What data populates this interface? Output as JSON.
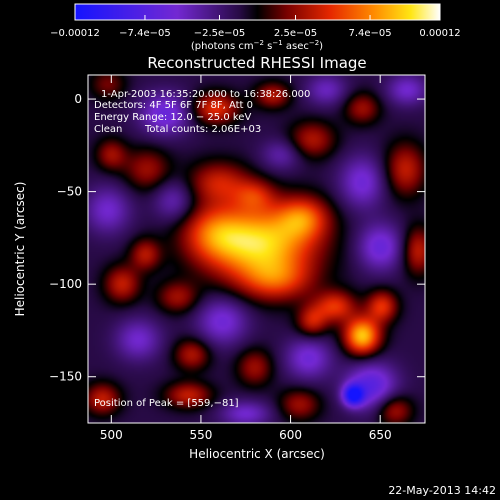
{
  "chart_data": {
    "type": "heatmap",
    "title": "Reconstructed RHESSI Image",
    "xlabel": "Heliocentric X (arcsec)",
    "ylabel": "Heliocentric Y (arcsec)",
    "xlim": [
      487,
      675
    ],
    "ylim": [
      -175,
      13
    ],
    "x_ticks": [
      {
        "value": 500,
        "label": "500"
      },
      {
        "value": 550,
        "label": "550"
      },
      {
        "value": 600,
        "label": "600"
      },
      {
        "value": 650,
        "label": "650"
      }
    ],
    "y_ticks": [
      {
        "value": 0,
        "label": "0"
      },
      {
        "value": -50,
        "label": "−50"
      },
      {
        "value": -100,
        "label": "−100"
      },
      {
        "value": -150,
        "label": "−150"
      }
    ],
    "colorbar": {
      "range": [
        -0.00012,
        0.00012
      ],
      "ticks": [
        {
          "value": -0.00012,
          "label": "−0.00012"
        },
        {
          "value": -7.4e-05,
          "label": "−7.4e−05"
        },
        {
          "value": -2.5e-05,
          "label": "−2.5e−05"
        },
        {
          "value": 2.5e-05,
          "label": "2.5e−05"
        },
        {
          "value": 7.4e-05,
          "label": "7.4e−05"
        },
        {
          "value": 0.00012,
          "label": "0.00012"
        }
      ],
      "unit_prefix": "(photons cm",
      "unit_sup1": "−2",
      "unit_mid": " s",
      "unit_sup2": "−1",
      "unit_mid2": " asec",
      "unit_sup3": "−2",
      "unit_suffix": ")"
    },
    "annotations": {
      "time_range": "1-Apr-2003 16:35:20.000 to 16:38:26.000",
      "detectors": "Detectors: 4F 5F 6F 7F 8F, Att 0",
      "energy": "Energy Range: 12.0 − 25.0 keV",
      "algorithm": "Clean",
      "counts": "Total counts: 2.06E+03",
      "peak": "Position of Peak = [559,−81]"
    },
    "peak": {
      "x": 559,
      "y": -81
    },
    "blobs": [
      {
        "x": 582,
        "y": -78,
        "sx": 22,
        "sy": 14,
        "a": 0.000112
      },
      {
        "x": 557,
        "y": -72,
        "sx": 12,
        "sy": 10,
        "a": 4.5e-05
      },
      {
        "x": 607,
        "y": -64,
        "sx": 10,
        "sy": 8,
        "a": 6e-05
      },
      {
        "x": 592,
        "y": -98,
        "sx": 14,
        "sy": 8,
        "a": 5e-05
      },
      {
        "x": 560,
        "y": -45,
        "sx": 12,
        "sy": 8,
        "a": 5e-05
      },
      {
        "x": 580,
        "y": -52,
        "sx": 8,
        "sy": 6,
        "a": 4e-05
      },
      {
        "x": 640,
        "y": -128,
        "sx": 7,
        "sy": 7,
        "a": 0.000105
      },
      {
        "x": 625,
        "y": -112,
        "sx": 8,
        "sy": 6,
        "a": 6e-05
      },
      {
        "x": 651,
        "y": -112,
        "sx": 6,
        "sy": 6,
        "a": 6e-05
      },
      {
        "x": 612,
        "y": -120,
        "sx": 6,
        "sy": 6,
        "a": 5e-05
      },
      {
        "x": 558,
        "y": -5,
        "sx": 9,
        "sy": 6,
        "a": 6e-05
      },
      {
        "x": 590,
        "y": 2,
        "sx": 7,
        "sy": 5,
        "a": 4.5e-05
      },
      {
        "x": 612,
        "y": -22,
        "sx": 9,
        "sy": 7,
        "a": 4.5e-05
      },
      {
        "x": 640,
        "y": -5,
        "sx": 7,
        "sy": 6,
        "a": 4e-05
      },
      {
        "x": 664,
        "y": -38,
        "sx": 8,
        "sy": 10,
        "a": 5e-05
      },
      {
        "x": 506,
        "y": -100,
        "sx": 7,
        "sy": 7,
        "a": 5e-05
      },
      {
        "x": 519,
        "y": -84,
        "sx": 6,
        "sy": 6,
        "a": 4.5e-05
      },
      {
        "x": 537,
        "y": -107,
        "sx": 8,
        "sy": 6,
        "a": 4e-05
      },
      {
        "x": 520,
        "y": -38,
        "sx": 9,
        "sy": 8,
        "a": 4e-05
      },
      {
        "x": 500,
        "y": -30,
        "sx": 6,
        "sy": 6,
        "a": 4e-05
      },
      {
        "x": 495,
        "y": -162,
        "sx": 7,
        "sy": 6,
        "a": 5e-05
      },
      {
        "x": 543,
        "y": -160,
        "sx": 9,
        "sy": 5,
        "a": 5e-05
      },
      {
        "x": 545,
        "y": -138,
        "sx": 7,
        "sy": 6,
        "a": 4.5e-05
      },
      {
        "x": 580,
        "y": -145,
        "sx": 7,
        "sy": 7,
        "a": 4e-05
      },
      {
        "x": 605,
        "y": -165,
        "sx": 8,
        "sy": 6,
        "a": 4e-05
      },
      {
        "x": 658,
        "y": -168,
        "sx": 7,
        "sy": 6,
        "a": 4.5e-05
      },
      {
        "x": 671,
        "y": -82,
        "sx": 6,
        "sy": 9,
        "a": 5e-05
      },
      {
        "x": 498,
        "y": 8,
        "sx": 7,
        "sy": 6,
        "a": 3e-05
      },
      {
        "x": 530,
        "y": -8,
        "sx": 10,
        "sy": 8,
        "a": -5e-05
      },
      {
        "x": 498,
        "y": -60,
        "sx": 9,
        "sy": 9,
        "a": -4e-05
      },
      {
        "x": 535,
        "y": -55,
        "sx": 8,
        "sy": 8,
        "a": -3.5e-05
      },
      {
        "x": 640,
        "y": -45,
        "sx": 9,
        "sy": 10,
        "a": -4.5e-05
      },
      {
        "x": 650,
        "y": -80,
        "sx": 9,
        "sy": 9,
        "a": -5e-05
      },
      {
        "x": 610,
        "y": -140,
        "sx": 9,
        "sy": 8,
        "a": -4.5e-05
      },
      {
        "x": 645,
        "y": -155,
        "sx": 10,
        "sy": 9,
        "a": -6e-05
      },
      {
        "x": 635,
        "y": -160,
        "sx": 4,
        "sy": 4,
        "a": -0.0001
      },
      {
        "x": 562,
        "y": -120,
        "sx": 10,
        "sy": 9,
        "a": -4.5e-05
      },
      {
        "x": 515,
        "y": -130,
        "sx": 9,
        "sy": 8,
        "a": -4e-05
      },
      {
        "x": 575,
        "y": -170,
        "sx": 10,
        "sy": 5,
        "a": -4e-05
      },
      {
        "x": 620,
        "y": 5,
        "sx": 8,
        "sy": 6,
        "a": -3.5e-05
      },
      {
        "x": 665,
        "y": 5,
        "sx": 8,
        "sy": 6,
        "a": -4e-05
      },
      {
        "x": 595,
        "y": -30,
        "sx": 8,
        "sy": 6,
        "a": -3e-05
      }
    ],
    "background_level": -1.2e-05,
    "grid": false,
    "legend": "none"
  },
  "footer": {
    "date": "22-May-2013 14:42"
  }
}
